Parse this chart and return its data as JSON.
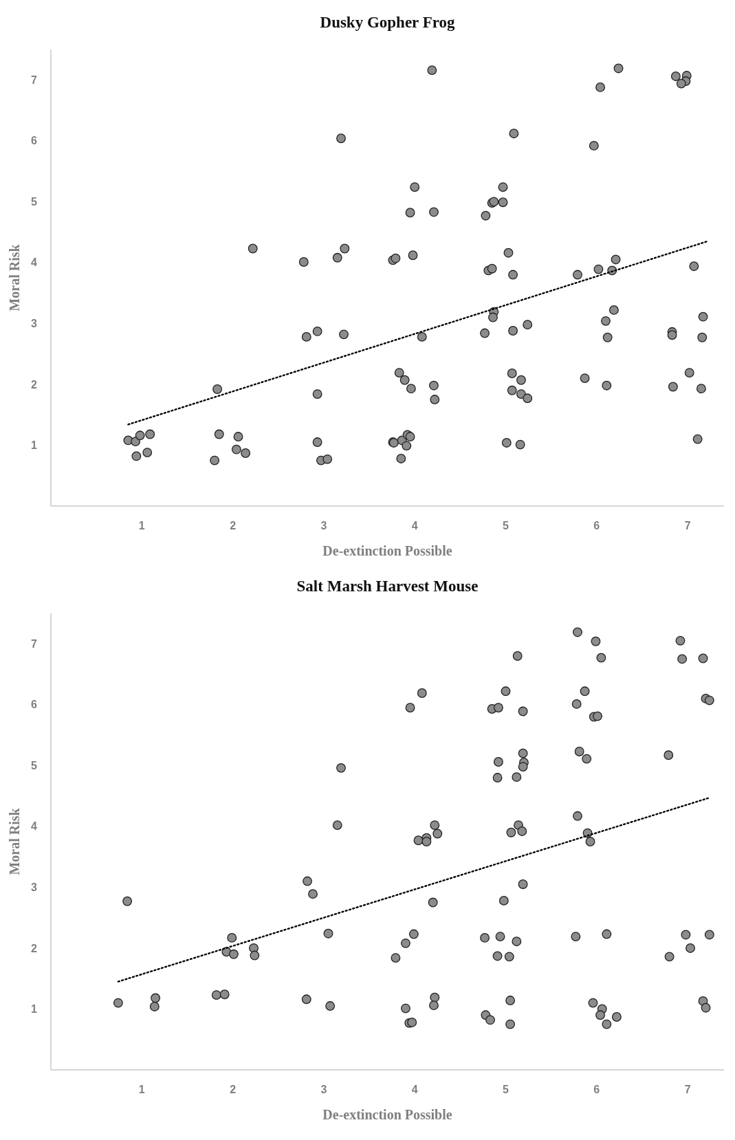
{
  "chart_data": [
    {
      "type": "scatter",
      "title": "Dusky Gopher Frog",
      "xlabel": "De-extinction Possible",
      "ylabel": "Moral Risk",
      "xlim": [
        0,
        7.4
      ],
      "ylim": [
        0,
        7.5
      ],
      "xticks": [
        1,
        2,
        3,
        4,
        5,
        6,
        7
      ],
      "yticks": [
        1,
        2,
        3,
        4,
        5,
        6,
        7
      ],
      "marker": "circle",
      "series": [
        {
          "color": "#8c8c8c",
          "x": [
            0.85,
            0.93,
            0.98,
            1.09,
            0.94,
            1.06,
            1.83,
            1.85,
            2.06,
            2.04,
            2.14,
            1.8,
            2.22,
            2.78,
            3.15,
            3.23,
            3.19,
            2.81,
            2.93,
            3.22,
            2.93,
            2.93,
            2.97,
            3.04,
            4.19,
            4.0,
            3.95,
            4.21,
            3.76,
            3.79,
            3.98,
            4.08,
            3.83,
            3.89,
            3.96,
            4.21,
            4.22,
            3.76,
            3.77,
            3.86,
            3.92,
            3.95,
            3.91,
            3.85,
            5.09,
            4.97,
            4.85,
            4.87,
            4.97,
            4.78,
            5.03,
            4.81,
            4.85,
            5.08,
            4.87,
            4.86,
            4.77,
            5.08,
            5.24,
            5.07,
            5.17,
            5.07,
            5.17,
            5.24,
            5.01,
            5.16,
            6.24,
            6.04,
            5.97,
            5.79,
            6.02,
            6.17,
            6.21,
            6.19,
            6.1,
            6.12,
            5.87,
            6.11,
            6.87,
            6.99,
            6.98,
            6.93,
            7.07,
            7.17,
            6.83,
            6.83,
            7.16,
            7.02,
            6.84,
            7.15,
            7.11
          ],
          "values": [
            1.08,
            1.06,
            1.16,
            1.18,
            0.82,
            0.88,
            1.92,
            1.18,
            1.14,
            0.93,
            0.87,
            0.75,
            4.23,
            4.01,
            4.08,
            4.23,
            6.04,
            2.78,
            2.87,
            2.82,
            1.84,
            1.05,
            0.75,
            0.77,
            7.16,
            5.24,
            4.82,
            4.83,
            4.04,
            4.07,
            4.12,
            2.78,
            2.19,
            2.07,
            1.93,
            1.98,
            1.75,
            1.05,
            1.04,
            1.08,
            1.17,
            1.14,
            0.99,
            0.78,
            6.12,
            5.24,
            4.98,
            5.0,
            4.99,
            4.77,
            4.16,
            3.87,
            3.9,
            3.8,
            3.19,
            3.1,
            2.84,
            2.88,
            2.98,
            2.18,
            2.07,
            1.9,
            1.84,
            1.77,
            1.04,
            1.01,
            7.19,
            6.88,
            5.92,
            3.8,
            3.89,
            3.87,
            4.05,
            3.22,
            3.04,
            2.77,
            2.1,
            1.98,
            7.06,
            7.07,
            6.98,
            6.94,
            3.94,
            3.11,
            2.86,
            2.81,
            2.77,
            2.19,
            1.96,
            1.93,
            1.1
          ]
        },
        {
          "type": "line",
          "color": "#000000",
          "line_style": "dotted",
          "marker": "none",
          "x": [
            0.85,
            7.22
          ],
          "values": [
            1.34,
            4.35
          ]
        }
      ]
    },
    {
      "type": "scatter",
      "title": "Salt Marsh Harvest Mouse",
      "xlabel": "De-extinction Possible",
      "ylabel": "Moral Risk",
      "xlim": [
        0,
        7.4
      ],
      "ylim": [
        0,
        7.5
      ],
      "xticks": [
        1,
        2,
        3,
        4,
        5,
        6,
        7
      ],
      "yticks": [
        1,
        2,
        3,
        4,
        5,
        6,
        7
      ],
      "marker": "circle",
      "series": [
        {
          "color": "#8c8c8c",
          "x": [
            0.74,
            0.84,
            1.15,
            1.14,
            1.82,
            1.91,
            1.99,
            1.93,
            2.01,
            2.23,
            2.24,
            2.81,
            3.07,
            2.82,
            2.88,
            3.05,
            3.19,
            3.15,
            3.95,
            4.08,
            4.22,
            4.04,
            4.13,
            4.13,
            4.25,
            4.2,
            3.99,
            3.9,
            3.79,
            4.22,
            4.21,
            3.9,
            3.94,
            3.97,
            5.13,
            5.0,
            4.85,
            4.92,
            5.19,
            5.19,
            4.92,
            5.2,
            5.19,
            5.12,
            4.91,
            5.14,
            5.06,
            5.18,
            5.19,
            4.98,
            4.77,
            4.94,
            5.12,
            4.91,
            5.04,
            5.05,
            4.78,
            4.83,
            5.05,
            5.79,
            5.99,
            6.05,
            5.87,
            5.78,
            5.97,
            6.01,
            5.81,
            5.89,
            5.79,
            5.9,
            5.93,
            5.77,
            6.11,
            5.96,
            6.06,
            6.04,
            6.22,
            6.11,
            6.92,
            6.94,
            7.17,
            7.2,
            7.24,
            6.79,
            6.98,
            7.03,
            6.8,
            7.24,
            7.17,
            7.2
          ],
          "values": [
            1.1,
            2.77,
            1.18,
            1.04,
            1.23,
            1.24,
            2.17,
            1.94,
            1.9,
            2.0,
            1.88,
            1.16,
            1.05,
            3.1,
            2.89,
            2.24,
            4.96,
            4.02,
            5.95,
            6.19,
            4.02,
            3.77,
            3.81,
            3.75,
            3.88,
            2.75,
            2.23,
            2.08,
            1.84,
            1.19,
            1.06,
            1.01,
            0.77,
            0.78,
            6.8,
            6.22,
            5.93,
            5.95,
            5.89,
            5.2,
            5.06,
            5.05,
            4.98,
            4.81,
            4.8,
            4.02,
            3.9,
            3.92,
            3.05,
            2.78,
            2.17,
            2.19,
            2.11,
            1.87,
            1.86,
            1.14,
            0.9,
            0.82,
            0.75,
            7.19,
            7.04,
            6.77,
            6.22,
            6.01,
            5.8,
            5.81,
            5.23,
            5.11,
            4.17,
            3.89,
            3.75,
            2.19,
            2.23,
            1.1,
            1.0,
            0.9,
            0.87,
            0.75,
            7.05,
            6.75,
            6.76,
            6.1,
            6.07,
            5.17,
            2.22,
            2.0,
            1.86,
            2.22,
            1.13,
            1.02
          ]
        },
        {
          "type": "line",
          "color": "#000000",
          "line_style": "dotted",
          "marker": "none",
          "x": [
            0.74,
            7.24
          ],
          "values": [
            1.45,
            4.47
          ]
        }
      ]
    }
  ]
}
